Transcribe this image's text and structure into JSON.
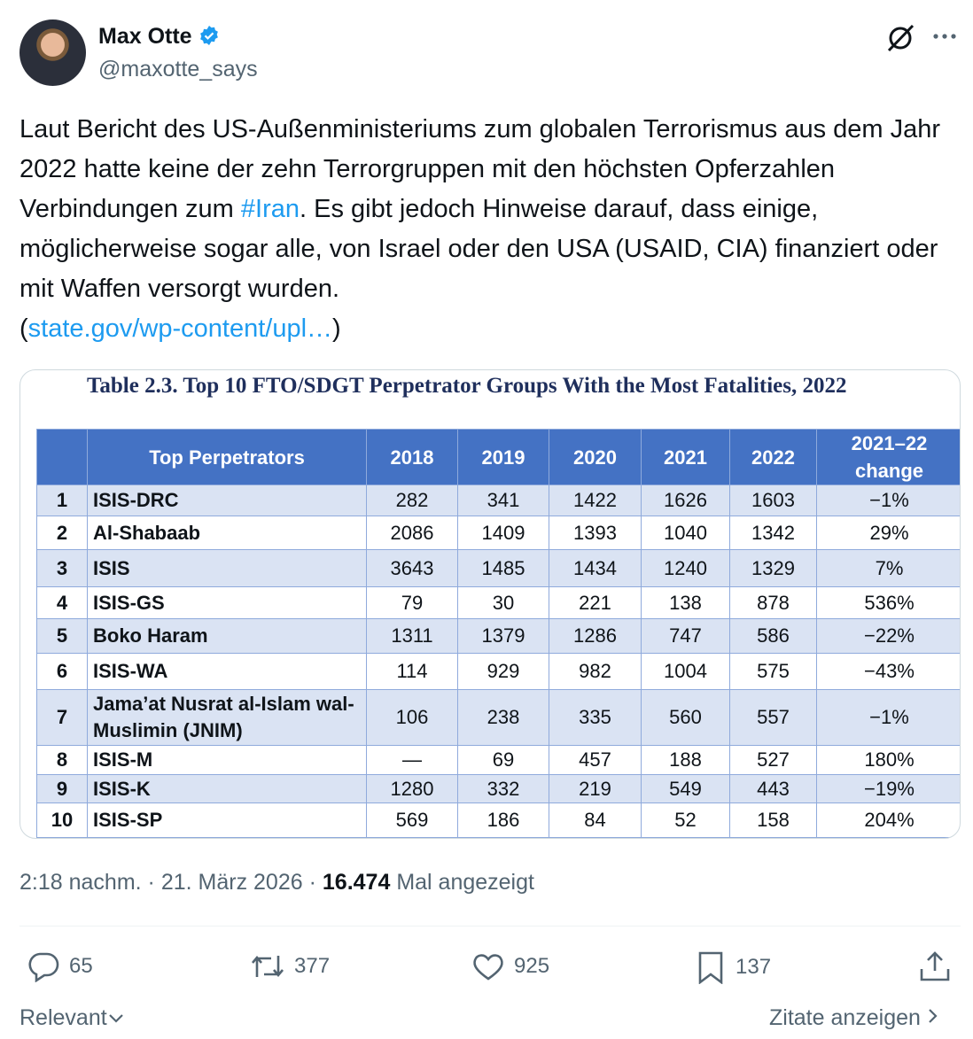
{
  "author": {
    "name": "Max Otte",
    "handle": "@maxotte_says"
  },
  "tweet": {
    "text_parts": [
      "Laut Bericht des US-Außenministeriums zum globalen Terrorismus aus dem Jahr 2022 hatte keine der zehn Terrorgruppen mit den höchsten Opferzahlen Verbindungen zum ",
      "#Iran",
      ". Es gibt jedoch Hinweise darauf, dass einige, möglicherweise sogar alle, von Israel oder den USA (USAID, CIA) finanziert oder mit Waffen versorgt wurden.",
      "(",
      "state.gov/wp-content/upl…",
      ")"
    ]
  },
  "image_table": {
    "title": "Table 2.3.  Top 10  FTO/SDGT Perpetrator Groups With the Most Fatalities, 2022",
    "header": [
      "Top Perpetrators",
      "2018",
      "2019",
      "2020",
      "2021",
      "2022",
      "2021–22 change"
    ],
    "rows": [
      [
        "1",
        "ISIS-DRC",
        "282",
        "341",
        "1422",
        "1626",
        "1603",
        "−1%"
      ],
      [
        "2",
        "Al-Shabaab",
        "2086",
        "1409",
        "1393",
        "1040",
        "1342",
        "29%"
      ],
      [
        "3",
        "ISIS",
        "3643",
        "1485",
        "1434",
        "1240",
        "1329",
        "7%"
      ],
      [
        "4",
        "ISIS-GS",
        "79",
        "30",
        "221",
        "138",
        "878",
        "536%"
      ],
      [
        "5",
        "Boko Haram",
        "1311",
        "1379",
        "1286",
        "747",
        "586",
        "−22%"
      ],
      [
        "6",
        "ISIS-WA",
        "114",
        "929",
        "982",
        "1004",
        "575",
        "−43%"
      ],
      [
        "7",
        "Jama’at Nusrat al-Islam wal-Muslimin (JNIM)",
        "106",
        "238",
        "335",
        "560",
        "557",
        "−1%"
      ],
      [
        "8",
        "ISIS-M",
        "—",
        "69",
        "457",
        "188",
        "527",
        "180%"
      ],
      [
        "9",
        "ISIS-K",
        "1280",
        "332",
        "219",
        "549",
        "443",
        "−19%"
      ],
      [
        "10",
        "ISIS-SP",
        "569",
        "186",
        "84",
        "52",
        "158",
        "204%"
      ]
    ]
  },
  "meta": {
    "time": "2:18 nachm.",
    "separator": "·",
    "date": "21. März 2026",
    "views": "16.474",
    "views_label": "Mal angezeigt"
  },
  "actions": {
    "replies": "65",
    "reposts": "377",
    "likes": "925",
    "bookmarks": "137"
  },
  "footer": {
    "sort": "Relevant",
    "quotes": "Zitate anzeigen"
  }
}
